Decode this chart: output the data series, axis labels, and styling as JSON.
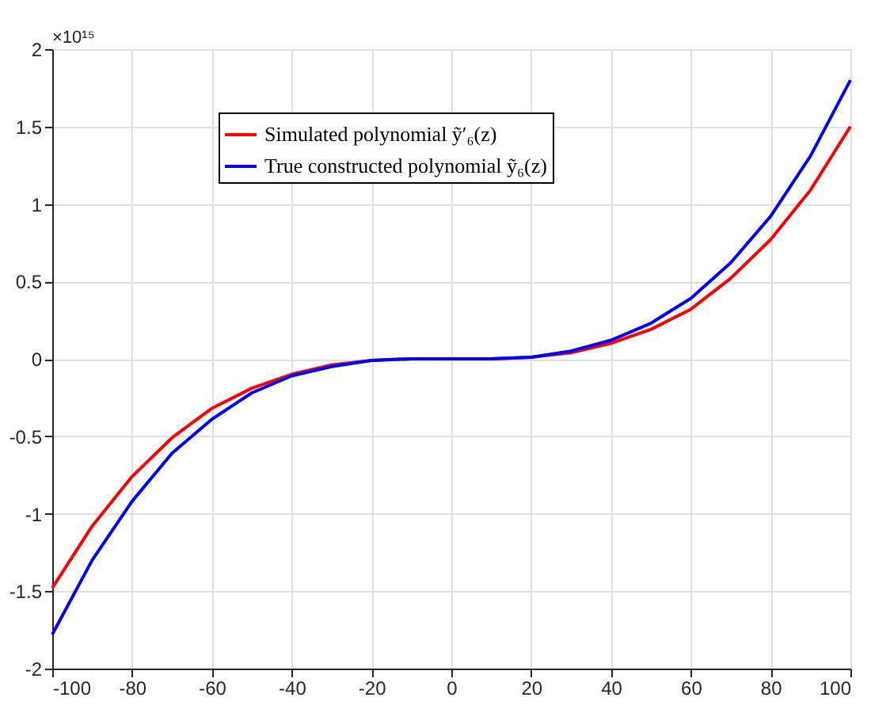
{
  "chart_data": {
    "type": "line",
    "x": [
      -100,
      -90,
      -80,
      -70,
      -60,
      -50,
      -40,
      -30,
      -20,
      -10,
      0,
      10,
      20,
      30,
      40,
      50,
      60,
      70,
      80,
      90,
      100
    ],
    "series": [
      {
        "name": "Simulated polynomial ỹ′₆(z)",
        "color": "#ff0000",
        "values": [
          -1.48,
          -1.08,
          -0.76,
          -0.51,
          -0.32,
          -0.19,
          -0.1,
          -0.04,
          -0.01,
          0,
          0,
          0,
          0.01,
          0.04,
          0.1,
          0.19,
          0.32,
          0.52,
          0.77,
          1.09,
          1.5
        ]
      },
      {
        "name": "True constructed polynomial ỹ₆(z)",
        "color": "#0000ff",
        "values": [
          -1.78,
          -1.3,
          -0.92,
          -0.61,
          -0.39,
          -0.22,
          -0.11,
          -0.05,
          -0.01,
          0,
          0,
          0,
          0.01,
          0.05,
          0.12,
          0.23,
          0.39,
          0.62,
          0.92,
          1.31,
          1.8
        ]
      }
    ],
    "xlim": [
      -100,
      100
    ],
    "xticks": [
      -100,
      -80,
      -60,
      -40,
      -20,
      0,
      20,
      40,
      60,
      80,
      100
    ],
    "ylim": [
      -2,
      2
    ],
    "yticks": [
      -2,
      -1.5,
      -1,
      -0.5,
      0,
      0.5,
      1,
      1.5,
      2
    ],
    "annotations": [
      "×10¹⁵"
    ],
    "grid": true,
    "legend": "top left",
    "marker": "none",
    "line_style": "solid"
  }
}
